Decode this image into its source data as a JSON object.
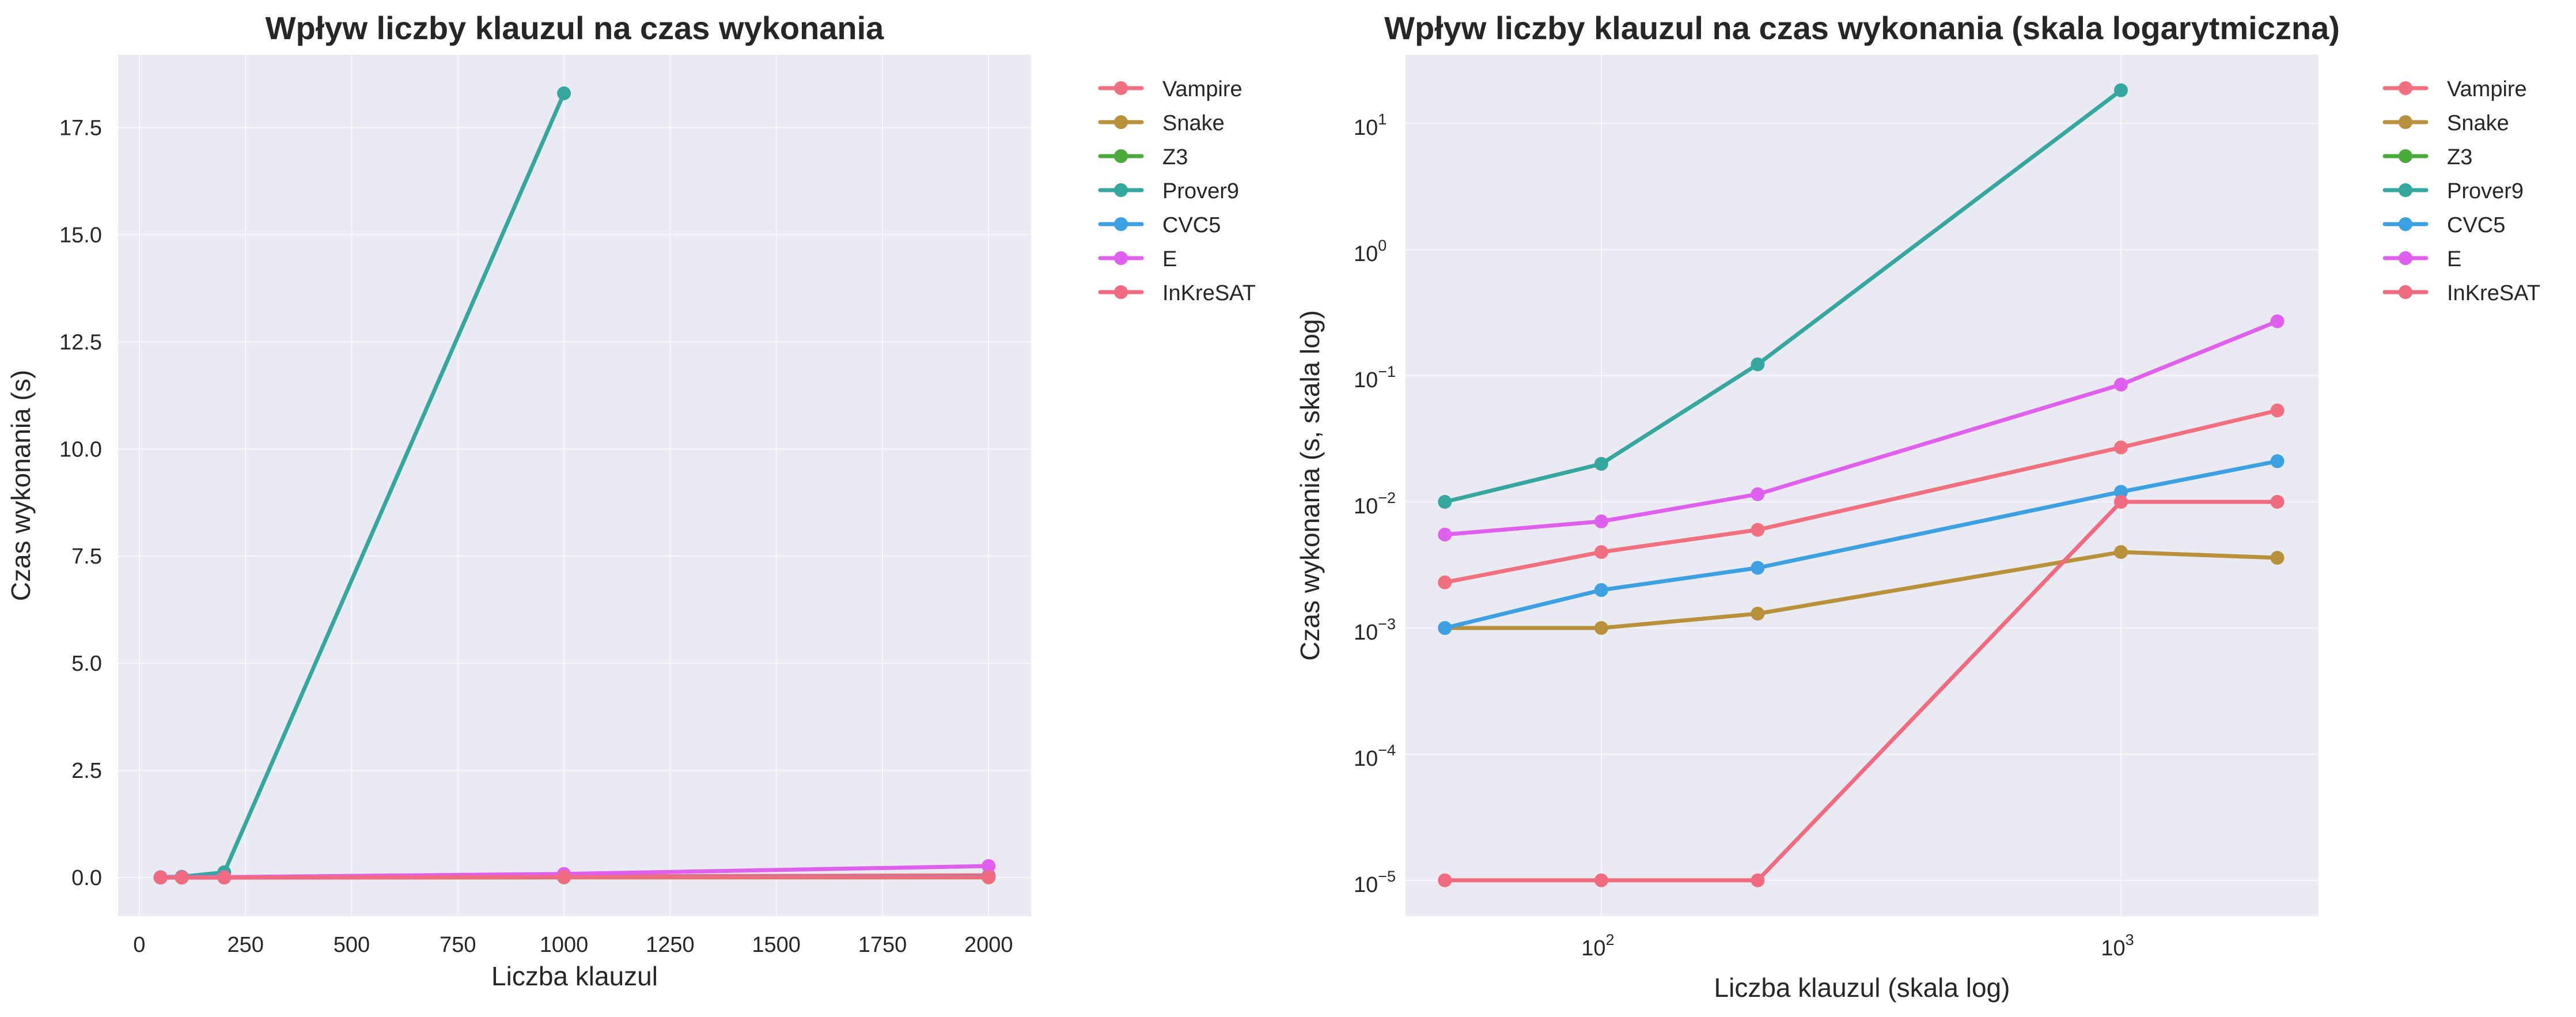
{
  "chart_data": [
    {
      "type": "line",
      "title": "Wpływ liczby klauzul na czas wykonania",
      "xlabel": "Liczba klauzul",
      "ylabel": "Czas wykonania (s)",
      "xscale": "linear",
      "yscale": "linear",
      "xlim": [
        -50,
        2100
      ],
      "ylim": [
        -0.9,
        19.2
      ],
      "xticks": [
        0,
        250,
        500,
        750,
        1000,
        1250,
        1500,
        1750,
        2000
      ],
      "xtick_labels": [
        "0",
        "250",
        "500",
        "750",
        "1000",
        "1250",
        "1500",
        "1750",
        "2000"
      ],
      "yticks": [
        0,
        2.5,
        5,
        7.5,
        10,
        12.5,
        15,
        17.5
      ],
      "ytick_labels": [
        "0.0",
        "2.5",
        "5.0",
        "7.5",
        "10.0",
        "12.5",
        "15.0",
        "17.5"
      ],
      "grid": true,
      "legend_position": "outside-right",
      "series": [
        {
          "name": "Vampire",
          "color": "#f0707f",
          "x": [
            50,
            100,
            200,
            1000,
            2000
          ],
          "y": [
            0.0023,
            0.004,
            0.006,
            0.027,
            0.053
          ]
        },
        {
          "name": "Snake",
          "color": "#b8913a",
          "x": [
            50,
            100,
            200,
            1000,
            2000
          ],
          "y": [
            0.001,
            0.001,
            0.0013,
            0.004,
            0.0036
          ]
        },
        {
          "name": "Z3",
          "color": "#4aaa3c",
          "x": [],
          "y": []
        },
        {
          "name": "Prover9",
          "color": "#36a79e",
          "x": [
            50,
            100,
            200,
            1000
          ],
          "y": [
            0.01,
            0.02,
            0.123,
            18.3
          ]
        },
        {
          "name": "CVC5",
          "color": "#3da0e0",
          "x": [
            50,
            100,
            200,
            1000,
            2000
          ],
          "y": [
            0.001,
            0.002,
            0.003,
            0.012,
            0.021
          ]
        },
        {
          "name": "E",
          "color": "#e060ee",
          "x": [
            50,
            100,
            200,
            1000,
            2000
          ],
          "y": [
            0.0055,
            0.007,
            0.0115,
            0.085,
            0.27
          ]
        },
        {
          "name": "InKreSAT",
          "color": "#f06a80",
          "x": [
            50,
            100,
            200,
            1000,
            2000
          ],
          "y": [
            1e-05,
            1e-05,
            1e-05,
            0.01,
            0.01
          ]
        }
      ]
    },
    {
      "type": "line",
      "title": "Wpływ liczby klauzul na czas wykonania (skala logarytmiczna)",
      "xlabel": "Liczba klauzul (skala log)",
      "ylabel": "Czas wykonania (s, skala log)",
      "xscale": "log",
      "yscale": "log",
      "xlim": [
        42,
        2400
      ],
      "ylim": [
        5.2e-06,
        35
      ],
      "xticks": [
        100,
        1000
      ],
      "xtick_base": [
        "10",
        "10"
      ],
      "xtick_exp": [
        "2",
        "3"
      ],
      "yticks": [
        1e-05,
        0.0001,
        0.001,
        0.01,
        0.1,
        1,
        10
      ],
      "ytick_base": [
        "10",
        "10",
        "10",
        "10",
        "10",
        "10",
        "10"
      ],
      "ytick_exp": [
        "−5",
        "−4",
        "−3",
        "−2",
        "−1",
        "0",
        "1"
      ],
      "grid": true,
      "legend_position": "outside-right",
      "series": [
        {
          "name": "Vampire",
          "color": "#f0707f",
          "x": [
            50,
            100,
            200,
            1000,
            2000
          ],
          "y": [
            0.0023,
            0.004,
            0.006,
            0.027,
            0.053
          ]
        },
        {
          "name": "Snake",
          "color": "#b8913a",
          "x": [
            50,
            100,
            200,
            1000,
            2000
          ],
          "y": [
            0.001,
            0.001,
            0.0013,
            0.004,
            0.0036
          ]
        },
        {
          "name": "Z3",
          "color": "#4aaa3c",
          "x": [],
          "y": []
        },
        {
          "name": "Prover9",
          "color": "#36a79e",
          "x": [
            50,
            100,
            200,
            1000
          ],
          "y": [
            0.01,
            0.02,
            0.123,
            18.3
          ]
        },
        {
          "name": "CVC5",
          "color": "#3da0e0",
          "x": [
            50,
            100,
            200,
            1000,
            2000
          ],
          "y": [
            0.001,
            0.002,
            0.003,
            0.012,
            0.021
          ]
        },
        {
          "name": "E",
          "color": "#e060ee",
          "x": [
            50,
            100,
            200,
            1000,
            2000
          ],
          "y": [
            0.0055,
            0.007,
            0.0115,
            0.085,
            0.27
          ]
        },
        {
          "name": "InKreSAT",
          "color": "#f06a80",
          "x": [
            50,
            100,
            200,
            1000,
            2000
          ],
          "y": [
            1e-05,
            1e-05,
            1e-05,
            0.01,
            0.01
          ]
        }
      ]
    }
  ]
}
